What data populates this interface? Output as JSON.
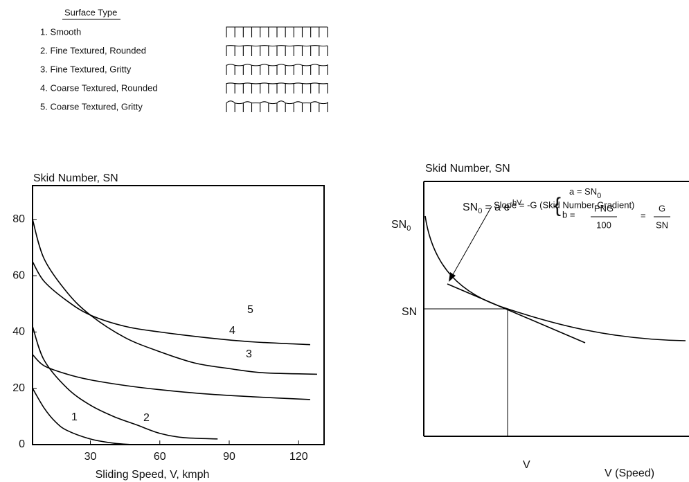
{
  "legend": {
    "title": "Surface Type",
    "items": [
      "1. Smooth",
      "2. Fine Textured, Rounded",
      "3. Fine Textured, Gritty",
      "4. Coarse Textured, Rounded",
      "5. Coarse Textured, Gritty"
    ]
  },
  "chart_data": {
    "type": "line",
    "title": "Skid Number, SN",
    "x_label": "Sliding Speed, V, kmph",
    "xlim": [
      5,
      131
    ],
    "xticks": [
      30,
      60,
      90,
      120
    ],
    "ylim": [
      0,
      92
    ],
    "yticks": [
      0,
      20,
      40,
      60,
      80
    ],
    "series": [
      {
        "name": "1",
        "color": "#000000",
        "x": [
          5,
          10,
          15,
          20,
          30,
          40,
          48
        ],
        "values": [
          20,
          13,
          8,
          5,
          2,
          0.5,
          0
        ]
      },
      {
        "name": "2",
        "color": "#000000",
        "x": [
          5,
          10,
          20,
          30,
          40,
          50,
          60,
          70,
          85
        ],
        "values": [
          42,
          30,
          20,
          14,
          10,
          7,
          4,
          2.5,
          2
        ]
      },
      {
        "name": "3",
        "color": "#000000",
        "x": [
          5,
          10,
          20,
          30,
          45,
          60,
          75,
          90,
          105,
          128
        ],
        "values": [
          80,
          66,
          54,
          46,
          38,
          33,
          29,
          27,
          25.5,
          25
        ]
      },
      {
        "name": "4",
        "color": "#000000",
        "x": [
          5,
          10,
          20,
          30,
          45,
          60,
          80,
          100,
          125
        ],
        "values": [
          32,
          28,
          25,
          23,
          21,
          19.5,
          18,
          17,
          16
        ]
      },
      {
        "name": "5",
        "color": "#000000",
        "x": [
          5,
          10,
          20,
          30,
          45,
          60,
          80,
          100,
          125
        ],
        "values": [
          65,
          58,
          51,
          46,
          42,
          40,
          38,
          36.5,
          35.5
        ]
      }
    ]
  },
  "diagram": {
    "y_axis_label": "Skid Number, SN",
    "sn0": {
      "text": "SN",
      "sub": "0"
    },
    "sn": "SN",
    "v": "V",
    "x_axis_label": "V (Speed)",
    "formula": {
      "lhs": "SN",
      "lhs_sub": "0",
      "eq": "= a e",
      "exp": "-bV",
      "a_line": "a = SN",
      "a_sub": "0",
      "b_line": "b =",
      "b_num": "PNG",
      "b_den": "100",
      "eq2": "=",
      "g_num": "G",
      "g_den": "SN"
    },
    "slope_note": "Slope = -G (Skid Number Gradient)"
  }
}
